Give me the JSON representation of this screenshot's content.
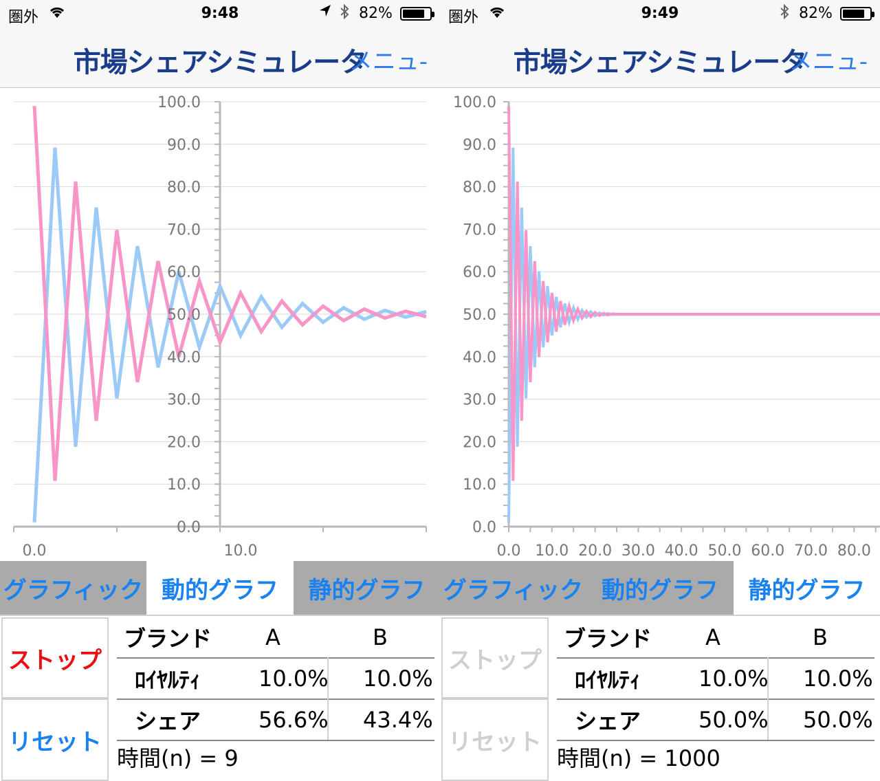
{
  "screens": [
    {
      "status": {
        "carrier": "圏外",
        "time": "9:48",
        "battery_pct": "82%",
        "battery_level": 0.82,
        "location_icon": true
      },
      "nav": {
        "title": "市場シェアシミュレータ",
        "menu": "メニュ-"
      },
      "chart_data": {
        "type": "line",
        "xlim": [
          -1,
          19
        ],
        "ylim": [
          0,
          100
        ],
        "x_ticks": [
          "0.0",
          "10.0"
        ],
        "y_ticks": [
          "0.0",
          "10.0",
          "20.0",
          "30.0",
          "40.0",
          "50.0",
          "60.0",
          "70.0",
          "80.0",
          "90.0",
          "100.0"
        ],
        "y_axis_at_x": 9,
        "series": [
          {
            "color": "#9ccaf7",
            "x": [
              0,
              1,
              2,
              3,
              4,
              5,
              6,
              7,
              8,
              9,
              10,
              11,
              12,
              13,
              14,
              15,
              16,
              17,
              18,
              19
            ],
            "values": [
              1,
              89.2,
              18.8,
              75.1,
              30.2,
              66.0,
              37.5,
              60.1,
              42.2,
              56.6,
              45.0,
              54.1,
              46.9,
              52.5,
              48.1,
              51.5,
              48.8,
              50.9,
              49.3,
              50.6
            ]
          },
          {
            "color": "#f795c8",
            "x": [
              0,
              1,
              2,
              3,
              4,
              5,
              6,
              7,
              8,
              9,
              10,
              11,
              12,
              13,
              14,
              15,
              16,
              17,
              18,
              19
            ],
            "values": [
              99,
              10.8,
              81.2,
              24.9,
              69.8,
              34.0,
              62.5,
              39.9,
              57.8,
              43.4,
              55.0,
              45.9,
              53.1,
              47.5,
              51.9,
              48.5,
              51.2,
              49.1,
              50.7,
              49.4
            ]
          }
        ]
      },
      "tabs": [
        {
          "label": "グラフィック",
          "style": "grey"
        },
        {
          "label": "動的グラフ",
          "style": "white"
        },
        {
          "label": "静的グラフ",
          "style": "grey"
        }
      ],
      "buttons": {
        "stop": "ストップ",
        "reset": "リセット",
        "enabled": true
      },
      "table": {
        "header": {
          "label": "ブランド",
          "a": "A",
          "b": "B"
        },
        "loyalty": {
          "label": "ﾛｲﾔﾙﾃｨ",
          "a": "10.0%",
          "b": "10.0%"
        },
        "share": {
          "label": "シェア",
          "a": "56.6%",
          "b": "43.4%"
        },
        "time": "時間(n) = 9"
      }
    },
    {
      "status": {
        "carrier": "圏外",
        "time": "9:49",
        "battery_pct": "82%",
        "battery_level": 0.82,
        "location_icon": false
      },
      "nav": {
        "title": "市場シェアシミュレータ",
        "menu": "メニュ-"
      },
      "chart_data": {
        "type": "line",
        "xlim": [
          0,
          86
        ],
        "ylim": [
          0,
          100
        ],
        "x_ticks": [
          "0.0",
          "10.0",
          "20.0",
          "30.0",
          "40.0",
          "50.0",
          "60.0",
          "70.0",
          "80.0"
        ],
        "y_ticks": [
          "0.0",
          "10.0",
          "20.0",
          "30.0",
          "40.0",
          "50.0",
          "60.0",
          "70.0",
          "80.0",
          "90.0",
          "100.0"
        ],
        "y_axis_at_x": 0,
        "series": [
          {
            "color": "#9ccaf7",
            "x": [
              0,
              1,
              2,
              3,
              4,
              5,
              6,
              7,
              8,
              9,
              10,
              11,
              12,
              13,
              14,
              15,
              16,
              17,
              18,
              19,
              20,
              21,
              22,
              23,
              24,
              25,
              86
            ],
            "values": [
              1,
              89.2,
              18.8,
              75.1,
              30.2,
              66.0,
              37.5,
              60.1,
              42.2,
              56.6,
              45.0,
              54.1,
              46.9,
              52.5,
              48.1,
              51.5,
              48.8,
              50.9,
              49.3,
              50.6,
              49.6,
              50.3,
              49.8,
              50.2,
              49.9,
              50.0,
              50.0
            ]
          },
          {
            "color": "#f795c8",
            "x": [
              0,
              1,
              2,
              3,
              4,
              5,
              6,
              7,
              8,
              9,
              10,
              11,
              12,
              13,
              14,
              15,
              16,
              17,
              18,
              19,
              20,
              21,
              22,
              23,
              24,
              25,
              86
            ],
            "values": [
              99,
              10.8,
              81.2,
              24.9,
              69.8,
              34.0,
              62.5,
              39.9,
              57.8,
              43.4,
              55.0,
              45.9,
              53.1,
              47.5,
              51.9,
              48.5,
              51.2,
              49.1,
              50.7,
              49.4,
              50.4,
              49.7,
              50.2,
              49.8,
              50.1,
              50.0,
              50.0
            ]
          }
        ]
      },
      "tabs": [
        {
          "label": "グラフィック",
          "style": "grey"
        },
        {
          "label": "動的グラフ",
          "style": "grey"
        },
        {
          "label": "静的グラフ",
          "style": "white"
        }
      ],
      "buttons": {
        "stop": "ストップ",
        "reset": "リセット",
        "enabled": false
      },
      "table": {
        "header": {
          "label": "ブランド",
          "a": "A",
          "b": "B"
        },
        "loyalty": {
          "label": "ﾛｲﾔﾙﾃｨ",
          "a": "10.0%",
          "b": "10.0%"
        },
        "share": {
          "label": "シェア",
          "a": "50.0%",
          "b": "50.0%"
        },
        "time": "時間(n) = 1000"
      }
    }
  ]
}
